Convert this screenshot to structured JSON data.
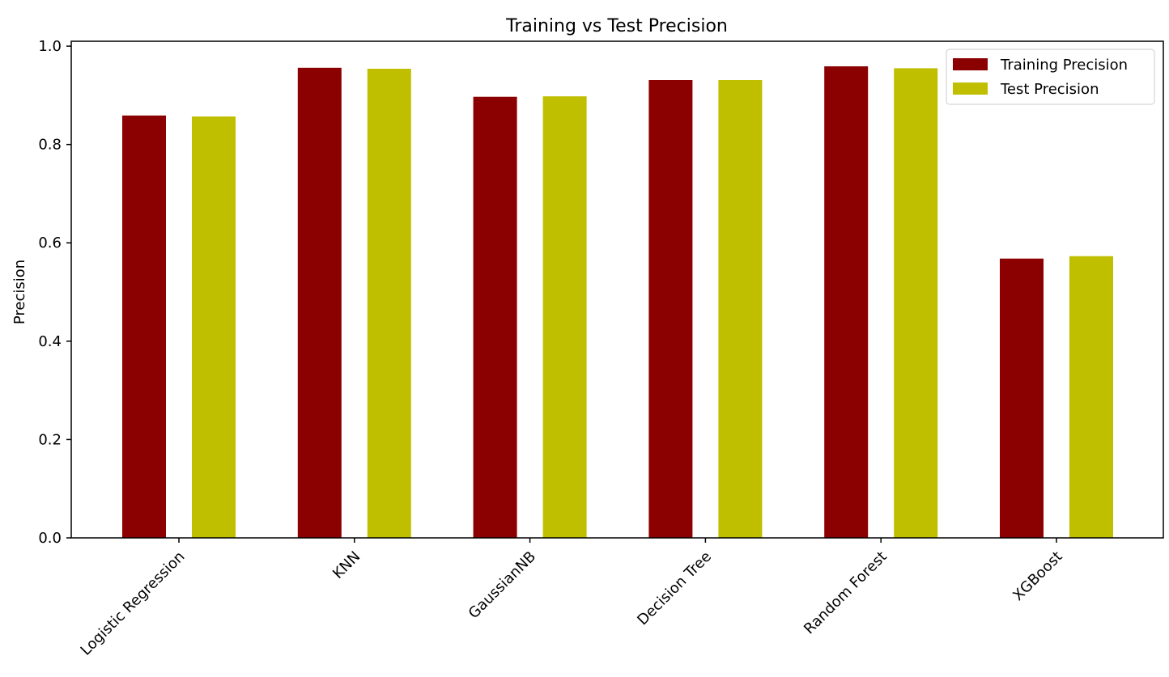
{
  "chart_data": {
    "type": "bar",
    "title": "Training vs Test Precision",
    "xlabel": "",
    "ylabel": "Precision",
    "categories": [
      "Logistic Regression",
      "KNN",
      "GaussianNB",
      "Decision Tree",
      "Random Forest",
      "XGBoost"
    ],
    "series": [
      {
        "name": "Training Precision",
        "color": "#8b0000",
        "values": [
          0.859,
          0.956,
          0.897,
          0.931,
          0.959,
          0.568
        ]
      },
      {
        "name": "Test Precision",
        "color": "#bfbf00",
        "values": [
          0.857,
          0.954,
          0.898,
          0.931,
          0.955,
          0.573
        ]
      }
    ],
    "ylim": [
      0,
      1.01
    ],
    "yticks": [
      "0.0",
      "0.2",
      "0.4",
      "0.6",
      "0.8",
      "1.0"
    ],
    "legend_position": "top-right",
    "grid": false
  }
}
